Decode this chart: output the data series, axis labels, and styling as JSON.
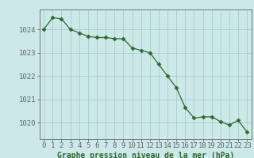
{
  "x": [
    0,
    1,
    2,
    3,
    4,
    5,
    6,
    7,
    8,
    9,
    10,
    11,
    12,
    13,
    14,
    15,
    16,
    17,
    18,
    19,
    20,
    21,
    22,
    23
  ],
  "y": [
    1024.0,
    1024.5,
    1024.45,
    1024.0,
    1023.85,
    1023.7,
    1023.65,
    1023.65,
    1023.6,
    1023.6,
    1023.2,
    1023.1,
    1023.0,
    1022.5,
    1022.0,
    1021.5,
    1020.65,
    1020.2,
    1020.25,
    1020.25,
    1020.05,
    1019.9,
    1020.1,
    1019.6
  ],
  "line_color": "#2d6b2d",
  "marker": "D",
  "marker_size": 2.5,
  "bg_color": "#cce8e8",
  "grid_color": "#aacccc",
  "grid_color_minor": "#ddeaea",
  "ylabel_values": [
    1020,
    1021,
    1022,
    1023,
    1024
  ],
  "xlabel_label": "Graphe pression niveau de la mer (hPa)",
  "ylim_min": 1019.3,
  "ylim_max": 1024.85,
  "title_color": "#2d6b2d",
  "axis_color": "#666666",
  "label_fontsize": 6.5,
  "xlabel_fontsize": 7.0
}
